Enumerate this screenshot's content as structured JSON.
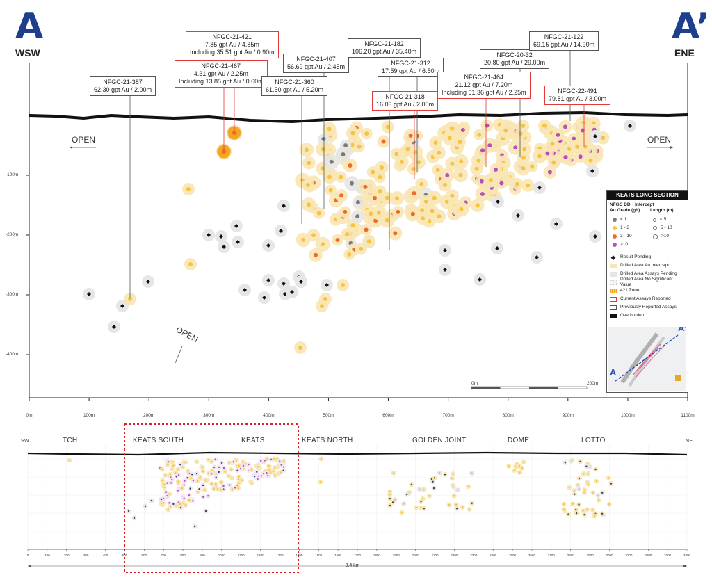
{
  "section": {
    "left_letter": "A",
    "right_letter": "A’",
    "left_dir": "WSW",
    "right_dir": "ENE",
    "open_left": "OPEN",
    "open_right": "OPEN",
    "open_down": "OPEN"
  },
  "callouts": [
    {
      "id": "NFGC-21-387",
      "lines": [
        "NFGC-21-387",
        "62.30 gpt Au / 2.00m"
      ],
      "current": false
    },
    {
      "id": "NFGC-21-421",
      "lines": [
        "NFGC-21-421",
        "7.85 gpt Au / 4.85m",
        "Including 35.51 gpt Au / 0.90m"
      ],
      "current": true
    },
    {
      "id": "NFGC-21-467",
      "lines": [
        "NFGC-21-467",
        "4.31 gpt Au / 2.25m",
        "Including 13.85 gpt Au / 0.60m"
      ],
      "current": true
    },
    {
      "id": "NFGC-21-360",
      "lines": [
        "NFGC-21-360",
        "61.50 gpt Au / 5.20m"
      ],
      "current": false
    },
    {
      "id": "NFGC-21-407",
      "lines": [
        "NFGC-21-407",
        "56.69 gpt Au / 2.45m"
      ],
      "current": false
    },
    {
      "id": "NFGC-21-182",
      "lines": [
        "NFGC-21-182",
        "106.20 gpt Au / 35.40m"
      ],
      "current": false
    },
    {
      "id": "NFGC-21-312",
      "lines": [
        "NFGC-21-312",
        "17.59 gpt Au / 6.50m"
      ],
      "current": false
    },
    {
      "id": "NFGC-21-318",
      "lines": [
        "NFGC-21-318",
        "16.03 gpt Au / 2.00m"
      ],
      "current": true
    },
    {
      "id": "NFGC-21-464",
      "lines": [
        "NFGC-21-464",
        "21.12 gpt Au / 7.20m",
        "Including 61.36 gpt Au / 2.25m"
      ],
      "current": true
    },
    {
      "id": "NFGC-20-32",
      "lines": [
        "NFGC-20-32",
        "20.80 gpt Au / 29.00m"
      ],
      "current": false
    },
    {
      "id": "NFGC-21-122",
      "lines": [
        "NFGC-21-122",
        "69.15 gpt Au / 14.90m"
      ],
      "current": false
    },
    {
      "id": "NFGC-22-491",
      "lines": [
        "NFGC-22-491",
        "79.81 gpt Au / 3.00m"
      ],
      "current": true
    }
  ],
  "axes": {
    "x_ticks": [
      "0m",
      "100m",
      "200m",
      "300m",
      "400m",
      "500m",
      "600m",
      "700m",
      "800m",
      "900m",
      "1000m",
      "1100m"
    ],
    "y_ticks": [
      "-100m",
      "-200m",
      "-300m",
      "-400m"
    ],
    "scale_left": "0m",
    "scale_right": "200m"
  },
  "legend": {
    "title": "KEATS LONG SECTION",
    "subtitle": "NFGC DDH Intercept",
    "grade_header": "Au Grade (g/t)",
    "length_header": "Length (m)",
    "grades": [
      {
        "label": "< 1",
        "color": "#7a7a7a"
      },
      {
        "label": "1 - 3",
        "color": "#f4c542"
      },
      {
        "label": "3 - 10",
        "color": "#ee6a2a"
      },
      {
        "label": ">10",
        "color": "#b74fb8"
      }
    ],
    "lengths": [
      "< 5",
      "5 - 10",
      ">10"
    ],
    "items": [
      {
        "label": "Result Pending",
        "type": "diamond"
      },
      {
        "label": "Drilled Area Au Intercept",
        "type": "fill",
        "color": "#f8e6b4"
      },
      {
        "label": "Drilled Area Assays Pending",
        "type": "fill",
        "color": "#e6e6e6"
      },
      {
        "label": "Drilled Area No Significant Value",
        "type": "fill",
        "color": "#f5f5f5"
      },
      {
        "label": "421 Zone",
        "type": "hatch",
        "color": "#f4a623"
      },
      {
        "label": "Current Assays Reported",
        "type": "box",
        "color": "#e03a3a"
      },
      {
        "label": "Previously Reported Assays",
        "type": "box",
        "color": "#555555"
      },
      {
        "label": "Overburden",
        "type": "fill",
        "color": "#111111"
      }
    ],
    "map_label": "A’",
    "map_label_left": "A"
  },
  "bottom": {
    "sw": "SW",
    "ne": "NE",
    "zones": [
      "TCH",
      "KEATS SOUTH",
      "KEATS",
      "KEATS NORTH",
      "GOLDEN JOINT",
      "DOME",
      "LOTTO"
    ],
    "ticks": [
      "0",
      "100",
      "200",
      "300",
      "400",
      "500",
      "600",
      "700",
      "800",
      "900",
      "1000",
      "1100",
      "1200",
      "1300",
      "1400",
      "1500",
      "1600",
      "1700",
      "1800",
      "1900",
      "2000",
      "2100",
      "2200",
      "2300",
      "2400",
      "2500",
      "2600",
      "2700",
      "2800",
      "2900",
      "3000",
      "3100",
      "3200",
      "3300",
      "3400"
    ],
    "distance": "3.4 km"
  },
  "colors": {
    "brand_blue": "#1e3f8e",
    "gold": "#f4c542",
    "orange": "#ee6a2a",
    "purple": "#b74fb8",
    "grey": "#7a7a7a",
    "current_box": "#e03a3a",
    "halo_gold": "#f8e6b4",
    "halo_grey": "#e6e6e6"
  }
}
